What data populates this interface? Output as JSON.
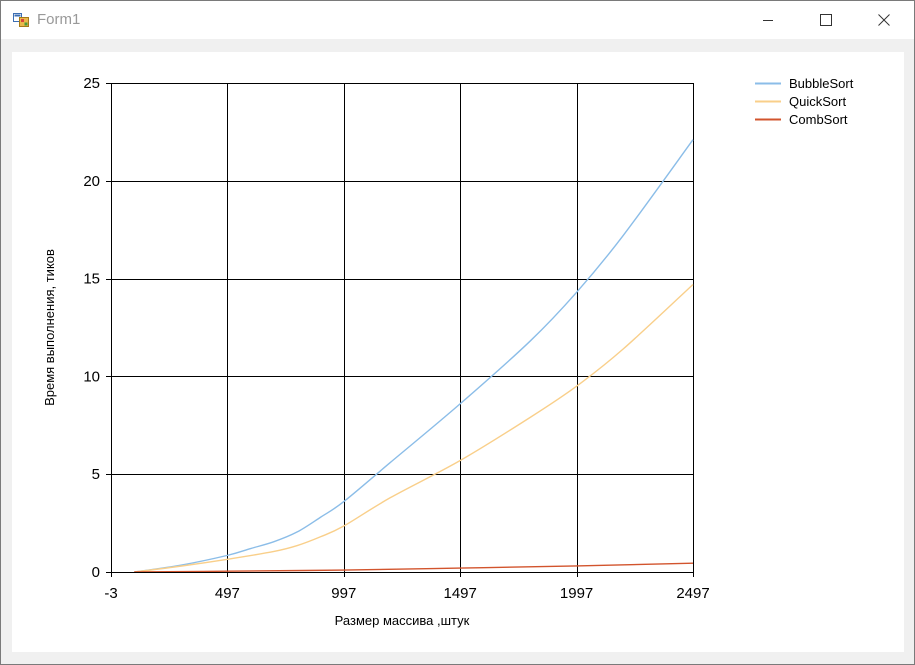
{
  "window": {
    "title": "Form1",
    "icon": "winforms-app-icon",
    "controls": {
      "minimize_icon": "minimize-icon",
      "maximize_icon": "maximize-icon",
      "close_icon": "close-icon"
    }
  },
  "chart_data": {
    "type": "line",
    "xlabel": "Размер массива ,штук",
    "ylabel": "Время выполнения, тиков",
    "xlim": [
      -3,
      2497
    ],
    "ylim": [
      0,
      25
    ],
    "x_ticks": [
      -3,
      497,
      997,
      1497,
      1997,
      2497
    ],
    "y_ticks": [
      0,
      5,
      10,
      15,
      20,
      25
    ],
    "grid": true,
    "legend_position": "top-right",
    "series": [
      {
        "name": "BubbleSort",
        "color": "#8bbde8",
        "x": [
          97,
          297,
          497,
          597,
          697,
          797,
          897,
          997,
          1197,
          1497,
          1797,
          1997,
          2197,
          2497
        ],
        "y": [
          0,
          0.35,
          0.85,
          1.2,
          1.55,
          2.05,
          2.8,
          3.6,
          5.6,
          8.6,
          11.8,
          14.3,
          17.2,
          22.1
        ]
      },
      {
        "name": "QuickSort",
        "color": "#f9cf8a",
        "x": [
          97,
          297,
          497,
          697,
          797,
          897,
          997,
          1197,
          1497,
          1797,
          1997,
          2197,
          2497
        ],
        "y": [
          0,
          0.3,
          0.65,
          1.05,
          1.35,
          1.8,
          2.35,
          3.8,
          5.7,
          7.9,
          9.5,
          11.4,
          14.7
        ]
      },
      {
        "name": "CombSort",
        "color": "#d2542d",
        "x": [
          97,
          497,
          997,
          1497,
          1997,
          2497
        ],
        "y": [
          0,
          0.04,
          0.1,
          0.2,
          0.31,
          0.45
        ]
      }
    ]
  }
}
